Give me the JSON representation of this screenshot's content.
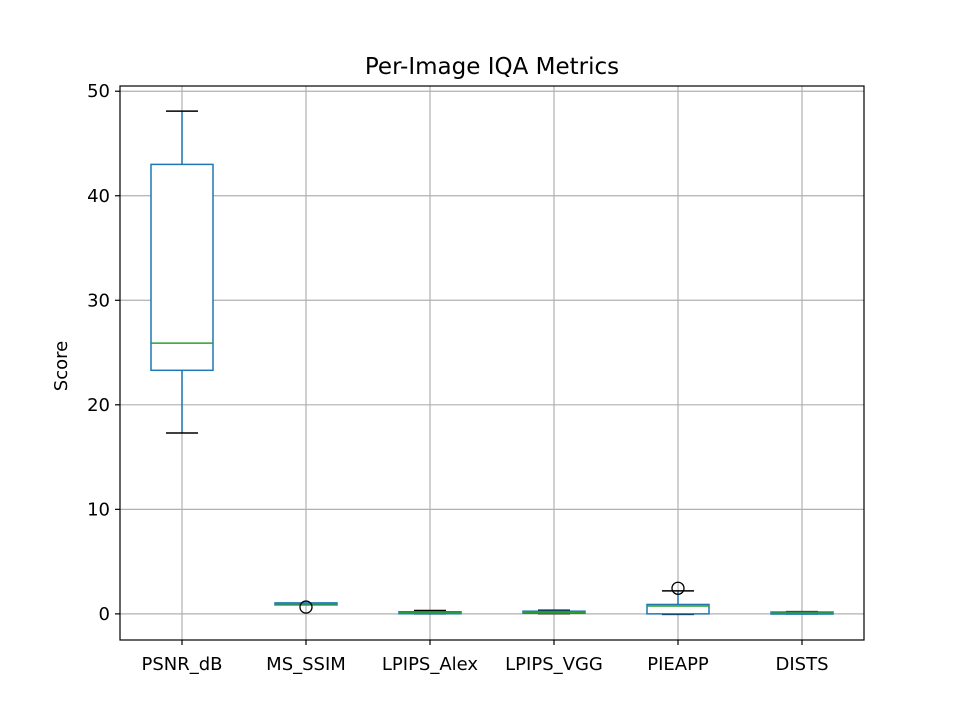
{
  "chart_data": {
    "type": "box",
    "title": "Per-Image IQA Metrics",
    "xlabel": "",
    "ylabel": "Score",
    "ylim": [
      -2.5,
      50.5
    ],
    "yticks": [
      0,
      10,
      20,
      30,
      40,
      50
    ],
    "grid": true,
    "categories": [
      "PSNR_dB",
      "MS_SSIM",
      "LPIPS_Alex",
      "LPIPS_VGG",
      "PIEAPP",
      "DISTS"
    ],
    "boxes": [
      {
        "whisker_low": 17.3,
        "q1": 23.3,
        "median": 25.9,
        "q3": 43.0,
        "whisker_high": 48.1,
        "outliers": []
      },
      {
        "whisker_low": 0.88,
        "q1": 0.93,
        "median": 0.96,
        "q3": 0.98,
        "whisker_high": 0.99,
        "outliers": [
          0.65
        ]
      },
      {
        "whisker_low": 0.0,
        "q1": 0.04,
        "median": 0.1,
        "q3": 0.17,
        "whisker_high": 0.32,
        "outliers": []
      },
      {
        "whisker_low": 0.02,
        "q1": 0.08,
        "median": 0.16,
        "q3": 0.24,
        "whisker_high": 0.35,
        "outliers": []
      },
      {
        "whisker_low": -0.05,
        "q1": 0.0,
        "median": 0.75,
        "q3": 0.9,
        "whisker_high": 2.2,
        "outliers": [
          2.45
        ]
      },
      {
        "whisker_low": 0.0,
        "q1": 0.03,
        "median": 0.08,
        "q3": 0.13,
        "whisker_high": 0.22,
        "outliers": []
      }
    ],
    "colors": {
      "box": "#1f77b4",
      "median": "#2ca02c",
      "whisker": "#1f77b4",
      "cap": "#000000",
      "grid": "#b0b0b0",
      "axes": "#000000"
    }
  }
}
